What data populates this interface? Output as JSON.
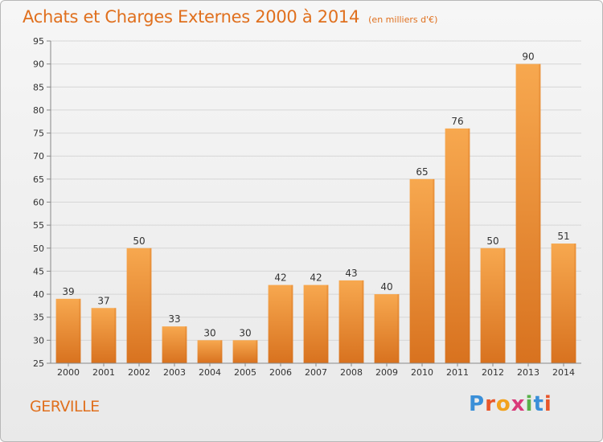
{
  "header": {
    "title": "Achats et Charges Externes 2000 à 2014",
    "unit": "(en milliers d'€)"
  },
  "footer": {
    "city": "GERVILLE",
    "brand": "Proxiti",
    "brand_letters": [
      "P",
      "r",
      "o",
      "x",
      "i",
      "t",
      "i"
    ],
    "brand_colors": [
      "#3a8fd8",
      "#e8562a",
      "#f2a21d",
      "#d93a7a",
      "#58b14a",
      "#3a8fd8",
      "#e8562a"
    ]
  },
  "colors": {
    "bar_light": "#f7a84f",
    "bar_dark": "#d8721f",
    "accent": "#e0701e",
    "grid": "#d6d6d6",
    "axis": "#888888",
    "text": "#333333"
  },
  "chart_data": {
    "type": "bar",
    "title": "Achats et Charges Externes 2000 à 2014",
    "subtitle": "(en milliers d'€)",
    "categories": [
      "2000",
      "2001",
      "2002",
      "2003",
      "2004",
      "2005",
      "2006",
      "2007",
      "2008",
      "2009",
      "2010",
      "2011",
      "2012",
      "2013",
      "2014"
    ],
    "values": [
      39,
      37,
      50,
      33,
      30,
      30,
      42,
      42,
      43,
      40,
      65,
      76,
      50,
      90,
      51
    ],
    "ylim": [
      25,
      95
    ],
    "yticks": [
      25,
      30,
      35,
      40,
      45,
      50,
      55,
      60,
      65,
      70,
      75,
      80,
      85,
      90,
      95
    ],
    "grid": true,
    "data_labels": true
  }
}
